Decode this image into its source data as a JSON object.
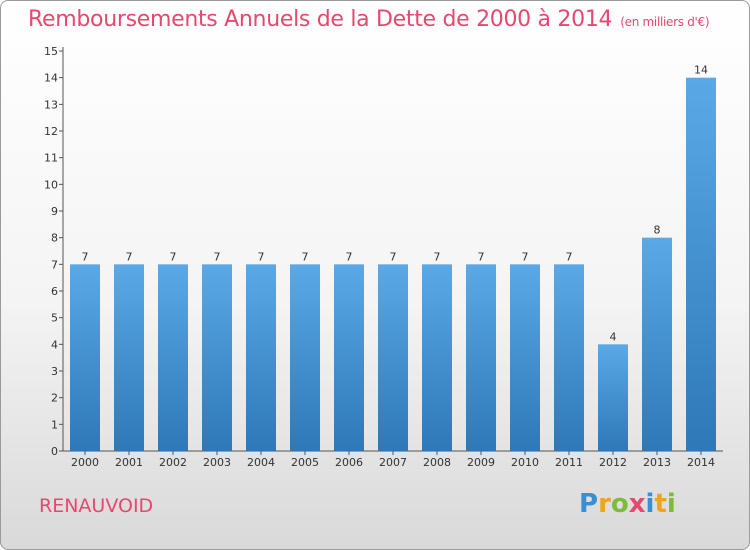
{
  "title": "Remboursements Annuels de la Dette de 2000 à 2014",
  "unit": "(en milliers d'€)",
  "commune": "RENAUVOID",
  "logo": {
    "letters": [
      {
        "ch": "P",
        "color": "#3a8fd0"
      },
      {
        "ch": "r",
        "color": "#f2a21b"
      },
      {
        "ch": "o",
        "color": "#7cbc3a"
      },
      {
        "ch": "x",
        "color": "#e8476e"
      },
      {
        "ch": "i",
        "color": "#3a8fd0"
      },
      {
        "ch": "t",
        "color": "#f2a21b"
      },
      {
        "ch": "i",
        "color": "#7cbc3a"
      }
    ]
  },
  "colors": {
    "title": "#e8476e",
    "bar_top": "#5aa9e6",
    "bar_bottom": "#2f78b8"
  },
  "chart_data": {
    "type": "bar",
    "categories": [
      "2000",
      "2001",
      "2002",
      "2003",
      "2004",
      "2005",
      "2006",
      "2007",
      "2008",
      "2009",
      "2010",
      "2011",
      "2012",
      "2013",
      "2014"
    ],
    "values": [
      7,
      7,
      7,
      7,
      7,
      7,
      7,
      7,
      7,
      7,
      7,
      7,
      4,
      8,
      14
    ],
    "data_labels": [
      "7",
      "7",
      "7",
      "7",
      "7",
      "7",
      "7",
      "7",
      "7",
      "7",
      "7",
      "7",
      "4",
      "8",
      "14"
    ],
    "yticks": [
      "0",
      "1",
      "2",
      "3",
      "4",
      "5",
      "6",
      "7",
      "8",
      "9",
      "10",
      "11",
      "12",
      "13",
      "14",
      "15"
    ],
    "ylim": [
      0,
      15
    ],
    "grid": false,
    "legend": "none"
  }
}
